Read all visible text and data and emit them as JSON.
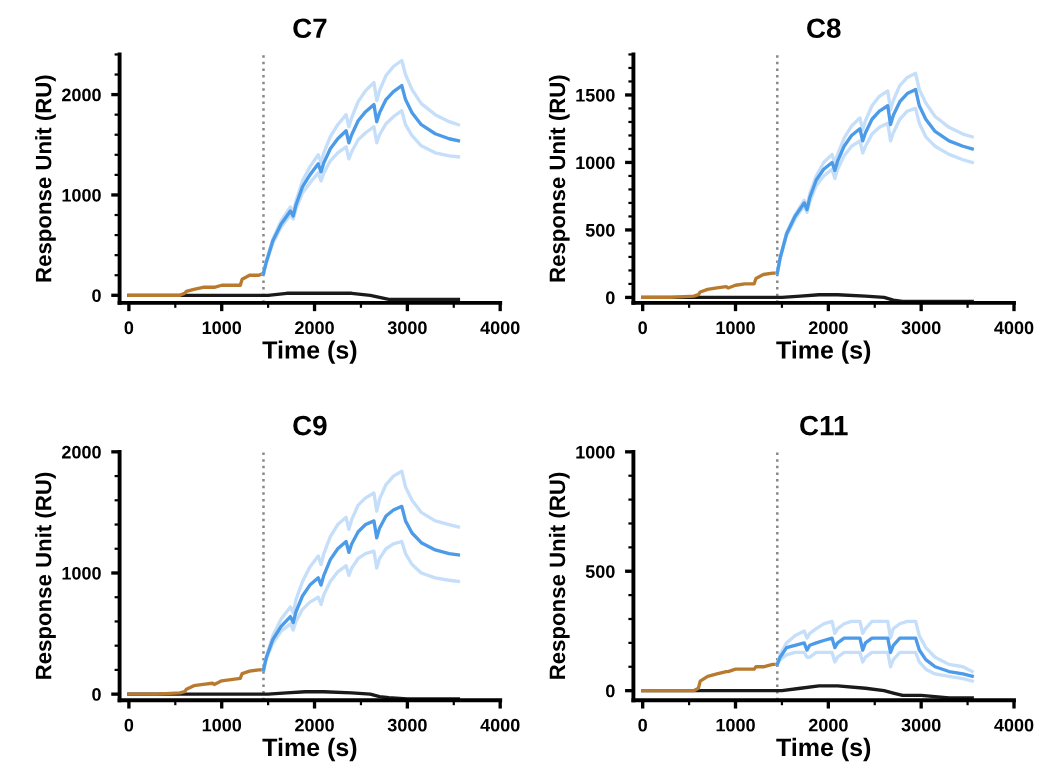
{
  "chart_data": [
    {
      "type": "line",
      "title": "C7",
      "xlabel": "Time (s)",
      "ylabel": "Response Unit (RU)",
      "xlim": [
        -100,
        4000
      ],
      "xticks": [
        0,
        1000,
        2000,
        3000,
        4000
      ],
      "ylim": [
        -75,
        2400
      ],
      "yticks": [
        0,
        1000,
        2000
      ],
      "ref_lines": [
        {
          "axis": "x",
          "value": 1450,
          "color": "#888888",
          "line_style": "dotted"
        }
      ],
      "series": [
        {
          "color": "#1a1a1a",
          "x": [
            0,
            600,
            1200,
            1450,
            1500,
            1700,
            1900,
            2100,
            2400,
            2600,
            2700,
            2800,
            3000,
            3300,
            3550
          ],
          "values": [
            0,
            0,
            0,
            0,
            0,
            20,
            20,
            20,
            20,
            0,
            -20,
            -40,
            -40,
            -40,
            -40
          ]
        },
        {
          "color": "#b87a2e",
          "x": [
            0,
            300,
            550,
            600,
            620,
            700,
            800,
            900,
            920,
            1000,
            1100,
            1200,
            1220,
            1300,
            1400,
            1450
          ],
          "values": [
            0,
            0,
            0,
            20,
            40,
            60,
            80,
            80,
            80,
            100,
            100,
            100,
            160,
            200,
            200,
            220
          ]
        },
        {
          "color": "#c5defa",
          "x": [
            1450,
            1480,
            1550,
            1640,
            1740,
            1770,
            1800,
            1870,
            1950,
            2040,
            2070,
            2100,
            2170,
            2250,
            2340,
            2370,
            2400,
            2470,
            2550,
            2640,
            2670,
            2700,
            2770,
            2850,
            2940,
            2980,
            3050,
            3150,
            3300,
            3450,
            3550
          ],
          "values": [
            220,
            340,
            560,
            740,
            880,
            820,
            940,
            1140,
            1280,
            1400,
            1320,
            1420,
            1580,
            1700,
            1800,
            1680,
            1770,
            1930,
            2040,
            2120,
            1940,
            2040,
            2190,
            2280,
            2340,
            2200,
            2050,
            1910,
            1800,
            1730,
            1700
          ]
        },
        {
          "color": "#c5defa",
          "x": [
            1450,
            1480,
            1550,
            1640,
            1740,
            1770,
            1800,
            1870,
            1950,
            2040,
            2070,
            2100,
            2170,
            2250,
            2340,
            2370,
            2400,
            2470,
            2550,
            2640,
            2670,
            2700,
            2770,
            2850,
            2940,
            2980,
            3050,
            3150,
            3300,
            3450,
            3550
          ],
          "values": [
            220,
            320,
            520,
            680,
            800,
            760,
            860,
            1020,
            1120,
            1220,
            1140,
            1220,
            1340,
            1420,
            1480,
            1360,
            1430,
            1550,
            1620,
            1680,
            1520,
            1600,
            1710,
            1780,
            1840,
            1700,
            1590,
            1490,
            1420,
            1390,
            1380
          ]
        },
        {
          "color": "#4c9be8",
          "x": [
            1450,
            1480,
            1550,
            1640,
            1740,
            1770,
            1800,
            1870,
            1950,
            2040,
            2070,
            2100,
            2170,
            2250,
            2340,
            2370,
            2400,
            2470,
            2550,
            2640,
            2670,
            2700,
            2770,
            2850,
            2940,
            2980,
            3050,
            3150,
            3300,
            3450,
            3550
          ],
          "values": [
            220,
            330,
            540,
            710,
            840,
            790,
            900,
            1080,
            1200,
            1310,
            1230,
            1320,
            1460,
            1560,
            1640,
            1520,
            1600,
            1740,
            1830,
            1900,
            1730,
            1820,
            1950,
            2030,
            2090,
            1950,
            1820,
            1700,
            1610,
            1560,
            1540
          ]
        }
      ]
    },
    {
      "type": "line",
      "title": "C8",
      "xlabel": "Time (s)",
      "ylabel": "Response Unit (RU)",
      "xlim": [
        -100,
        4000
      ],
      "xticks": [
        0,
        1000,
        2000,
        3000,
        4000
      ],
      "ylim": [
        -40,
        1800
      ],
      "yticks": [
        0,
        500,
        1000,
        1500
      ],
      "ref_lines": [
        {
          "axis": "x",
          "value": 1450,
          "color": "#888888",
          "line_style": "dotted"
        }
      ],
      "series": [
        {
          "color": "#1a1a1a",
          "x": [
            0,
            600,
            1200,
            1450,
            1500,
            1700,
            1900,
            2100,
            2400,
            2600,
            2700,
            2800,
            3000,
            3300,
            3550
          ],
          "values": [
            0,
            0,
            0,
            0,
            0,
            10,
            20,
            20,
            10,
            0,
            -20,
            -30,
            -30,
            -30,
            -30
          ]
        },
        {
          "color": "#b87a2e",
          "x": [
            0,
            300,
            550,
            600,
            620,
            700,
            800,
            900,
            920,
            1000,
            1100,
            1200,
            1220,
            1300,
            1400,
            1450
          ],
          "values": [
            0,
            0,
            10,
            20,
            40,
            60,
            70,
            80,
            70,
            90,
            100,
            100,
            140,
            170,
            180,
            180
          ]
        },
        {
          "color": "#c5defa",
          "x": [
            1450,
            1480,
            1550,
            1640,
            1740,
            1770,
            1800,
            1870,
            1950,
            2040,
            2070,
            2100,
            2170,
            2250,
            2340,
            2370,
            2400,
            2470,
            2550,
            2640,
            2670,
            2700,
            2770,
            2850,
            2940,
            2980,
            3050,
            3150,
            3300,
            3450,
            3550
          ],
          "values": [
            180,
            290,
            480,
            610,
            720,
            670,
            770,
            900,
            1000,
            1060,
            990,
            1060,
            1180,
            1270,
            1330,
            1240,
            1310,
            1420,
            1490,
            1530,
            1390,
            1460,
            1570,
            1630,
            1660,
            1540,
            1440,
            1340,
            1260,
            1210,
            1190
          ]
        },
        {
          "color": "#c5defa",
          "x": [
            1450,
            1480,
            1550,
            1640,
            1740,
            1770,
            1800,
            1870,
            1950,
            2040,
            2070,
            2100,
            2170,
            2250,
            2340,
            2370,
            2400,
            2470,
            2550,
            2640,
            2670,
            2700,
            2770,
            2850,
            2940,
            2980,
            3050,
            3150,
            3300,
            3450,
            3550
          ],
          "values": [
            180,
            290,
            460,
            580,
            680,
            630,
            710,
            830,
            900,
            950,
            880,
            950,
            1050,
            1120,
            1160,
            1070,
            1120,
            1210,
            1260,
            1290,
            1160,
            1220,
            1320,
            1380,
            1400,
            1290,
            1190,
            1120,
            1060,
            1020,
            1000
          ]
        },
        {
          "color": "#4c9be8",
          "x": [
            1450,
            1480,
            1550,
            1640,
            1740,
            1770,
            1800,
            1870,
            1950,
            2040,
            2070,
            2100,
            2170,
            2250,
            2340,
            2370,
            2400,
            2470,
            2550,
            2640,
            2670,
            2700,
            2770,
            2850,
            2940,
            2980,
            3050,
            3150,
            3300,
            3450,
            3550
          ],
          "values": [
            180,
            290,
            470,
            600,
            700,
            650,
            740,
            870,
            950,
            1000,
            940,
            1010,
            1120,
            1200,
            1250,
            1160,
            1220,
            1320,
            1380,
            1420,
            1280,
            1350,
            1450,
            1510,
            1540,
            1420,
            1320,
            1230,
            1160,
            1120,
            1100
          ]
        }
      ]
    },
    {
      "type": "line",
      "title": "C9",
      "xlabel": "Time (s)",
      "ylabel": "Response Unit (RU)",
      "xlim": [
        -100,
        4000
      ],
      "xticks": [
        0,
        1000,
        2000,
        3000,
        4000
      ],
      "ylim": [
        -50,
        2000
      ],
      "yticks": [
        0,
        1000,
        2000
      ],
      "ref_lines": [
        {
          "axis": "x",
          "value": 1450,
          "color": "#888888",
          "line_style": "dotted"
        }
      ],
      "series": [
        {
          "color": "#1a1a1a",
          "x": [
            0,
            600,
            1200,
            1450,
            1500,
            1700,
            1900,
            2100,
            2400,
            2600,
            2700,
            2800,
            3000,
            3300,
            3550
          ],
          "values": [
            0,
            0,
            0,
            0,
            0,
            10,
            20,
            20,
            10,
            0,
            -20,
            -30,
            -40,
            -40,
            -40
          ]
        },
        {
          "color": "#b87a2e",
          "x": [
            0,
            300,
            550,
            600,
            620,
            700,
            800,
            900,
            920,
            1000,
            1100,
            1200,
            1220,
            1300,
            1400,
            1450
          ],
          "values": [
            0,
            0,
            10,
            20,
            40,
            70,
            80,
            90,
            80,
            110,
            120,
            130,
            170,
            190,
            200,
            200
          ]
        },
        {
          "color": "#c5defa",
          "x": [
            1450,
            1480,
            1550,
            1640,
            1740,
            1770,
            1800,
            1870,
            1950,
            2040,
            2070,
            2100,
            2170,
            2250,
            2340,
            2370,
            2400,
            2470,
            2550,
            2640,
            2670,
            2700,
            2770,
            2850,
            2940,
            2980,
            3050,
            3150,
            3300,
            3450,
            3550
          ],
          "values": [
            200,
            310,
            480,
            620,
            720,
            670,
            780,
            930,
            1050,
            1140,
            1070,
            1160,
            1300,
            1400,
            1460,
            1360,
            1440,
            1560,
            1620,
            1660,
            1510,
            1610,
            1730,
            1800,
            1840,
            1710,
            1600,
            1500,
            1430,
            1400,
            1380
          ]
        },
        {
          "color": "#c5defa",
          "x": [
            1450,
            1480,
            1550,
            1640,
            1740,
            1770,
            1800,
            1870,
            1950,
            2040,
            2070,
            2100,
            2170,
            2250,
            2340,
            2370,
            2400,
            2470,
            2550,
            2640,
            2670,
            2700,
            2770,
            2850,
            2940,
            2980,
            3050,
            3150,
            3300,
            3450,
            3550
          ],
          "values": [
            200,
            290,
            420,
            520,
            580,
            530,
            600,
            700,
            760,
            800,
            740,
            820,
            930,
            1010,
            1060,
            980,
            1040,
            1120,
            1160,
            1180,
            1040,
            1120,
            1200,
            1240,
            1260,
            1160,
            1070,
            1000,
            960,
            940,
            930
          ]
        },
        {
          "color": "#4c9be8",
          "x": [
            1450,
            1480,
            1550,
            1640,
            1740,
            1770,
            1800,
            1870,
            1950,
            2040,
            2070,
            2100,
            2170,
            2250,
            2340,
            2370,
            2400,
            2470,
            2550,
            2640,
            2670,
            2700,
            2770,
            2850,
            2940,
            2980,
            3050,
            3150,
            3300,
            3450,
            3550
          ],
          "values": [
            200,
            300,
            450,
            560,
            640,
            590,
            680,
            810,
            900,
            960,
            900,
            980,
            1110,
            1200,
            1260,
            1170,
            1240,
            1340,
            1400,
            1430,
            1290,
            1370,
            1470,
            1520,
            1550,
            1430,
            1330,
            1250,
            1190,
            1160,
            1150
          ]
        }
      ]
    },
    {
      "type": "line",
      "title": "C11",
      "xlabel": "Time (s)",
      "ylabel": "Response Unit (RU)",
      "xlim": [
        -100,
        4000
      ],
      "xticks": [
        0,
        1000,
        2000,
        3000,
        4000
      ],
      "ylim": [
        -40,
        1000
      ],
      "yticks": [
        0,
        500,
        1000
      ],
      "ref_lines": [
        {
          "axis": "x",
          "value": 1450,
          "color": "#888888",
          "line_style": "dotted"
        }
      ],
      "series": [
        {
          "color": "#1a1a1a",
          "x": [
            0,
            600,
            1200,
            1450,
            1500,
            1700,
            1900,
            2100,
            2400,
            2600,
            2700,
            2800,
            3000,
            3300,
            3550
          ],
          "values": [
            0,
            0,
            0,
            0,
            0,
            10,
            20,
            20,
            10,
            0,
            -10,
            -20,
            -20,
            -30,
            -30
          ]
        },
        {
          "color": "#b87a2e",
          "x": [
            0,
            300,
            550,
            600,
            620,
            700,
            800,
            900,
            920,
            1000,
            1100,
            1200,
            1220,
            1300,
            1400,
            1450
          ],
          "values": [
            0,
            0,
            0,
            10,
            40,
            60,
            70,
            80,
            80,
            90,
            90,
            90,
            100,
            100,
            110,
            110
          ]
        },
        {
          "color": "#c5defa",
          "x": [
            1450,
            1480,
            1550,
            1640,
            1740,
            1770,
            1800,
            1870,
            1950,
            2040,
            2070,
            2100,
            2170,
            2250,
            2340,
            2370,
            2400,
            2470,
            2550,
            2640,
            2670,
            2700,
            2770,
            2850,
            2940,
            2980,
            3050,
            3150,
            3300,
            3450,
            3550
          ],
          "values": [
            110,
            150,
            200,
            230,
            250,
            220,
            240,
            260,
            280,
            290,
            240,
            260,
            280,
            290,
            290,
            240,
            260,
            290,
            290,
            290,
            220,
            260,
            280,
            290,
            290,
            230,
            180,
            140,
            110,
            100,
            80
          ]
        },
        {
          "color": "#c5defa",
          "x": [
            1450,
            1480,
            1550,
            1640,
            1740,
            1770,
            1800,
            1870,
            1950,
            2040,
            2070,
            2100,
            2170,
            2250,
            2340,
            2370,
            2400,
            2470,
            2550,
            2640,
            2670,
            2700,
            2770,
            2850,
            2940,
            2980,
            3050,
            3150,
            3300,
            3450,
            3550
          ],
          "values": [
            110,
            130,
            150,
            160,
            160,
            140,
            140,
            160,
            160,
            160,
            120,
            140,
            160,
            160,
            160,
            120,
            140,
            160,
            160,
            160,
            100,
            130,
            160,
            160,
            160,
            120,
            90,
            70,
            60,
            50,
            40
          ]
        },
        {
          "color": "#4c9be8",
          "x": [
            1450,
            1480,
            1550,
            1640,
            1740,
            1770,
            1800,
            1870,
            1950,
            2040,
            2070,
            2100,
            2170,
            2250,
            2340,
            2370,
            2400,
            2470,
            2550,
            2640,
            2670,
            2700,
            2770,
            2850,
            2940,
            2980,
            3050,
            3150,
            3300,
            3450,
            3550
          ],
          "values": [
            110,
            140,
            180,
            190,
            200,
            170,
            190,
            200,
            210,
            220,
            180,
            200,
            220,
            220,
            220,
            170,
            200,
            220,
            220,
            220,
            160,
            190,
            220,
            220,
            220,
            170,
            130,
            100,
            80,
            70,
            60
          ]
        }
      ]
    }
  ]
}
